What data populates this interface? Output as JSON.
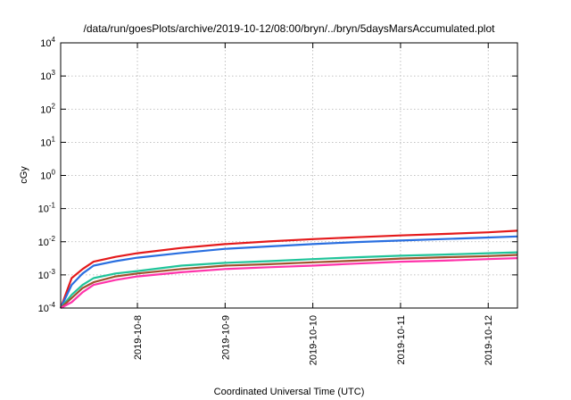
{
  "chart_data": {
    "type": "line",
    "title": "/data/run/goesPlots/archive/2019-10-12/08:00/bryn/../bryn/5daysMarsAccumulated.plot",
    "xlabel": "Coordinated Universal Time (UTC)",
    "ylabel": "cGy",
    "yscale": "log",
    "ylim": [
      0.0001,
      10000
    ],
    "xlim": [
      "2019-10-07T03:00",
      "2019-10-12T08:00"
    ],
    "grid": true,
    "y_ticks": [
      {
        "base": "10",
        "exp": "4"
      },
      {
        "base": "10",
        "exp": "3"
      },
      {
        "base": "10",
        "exp": "2"
      },
      {
        "base": "10",
        "exp": "1"
      },
      {
        "base": "10",
        "exp": "0"
      },
      {
        "base": "10",
        "exp": "-1"
      },
      {
        "base": "10",
        "exp": "-2"
      },
      {
        "base": "10",
        "exp": "-3"
      },
      {
        "base": "10",
        "exp": "-4"
      }
    ],
    "x_ticks": [
      "2019-10-8",
      "2019-10-9",
      "2019-10-10",
      "2019-10-11",
      "2019-10-12"
    ],
    "x": [
      "2019-10-07T03:00",
      "2019-10-07T06:00",
      "2019-10-07T09:00",
      "2019-10-07T12:00",
      "2019-10-07T18:00",
      "2019-10-08T00:00",
      "2019-10-08T12:00",
      "2019-10-09T00:00",
      "2019-10-09T12:00",
      "2019-10-10T00:00",
      "2019-10-10T12:00",
      "2019-10-11T00:00",
      "2019-10-11T12:00",
      "2019-10-12T00:00",
      "2019-10-12T08:00"
    ],
    "series": [
      {
        "color": "#e41a1c",
        "values": [
          0.0001,
          0.0008,
          0.0015,
          0.0025,
          0.0035,
          0.0045,
          0.0065,
          0.0085,
          0.0102,
          0.012,
          0.0137,
          0.0155,
          0.0172,
          0.0192,
          0.0215
        ]
      },
      {
        "color": "#2a6fe0",
        "values": [
          0.0001,
          0.0005,
          0.0011,
          0.0019,
          0.0026,
          0.0033,
          0.0046,
          0.0061,
          0.0072,
          0.0085,
          0.0098,
          0.0109,
          0.0121,
          0.0134,
          0.0145
        ]
      },
      {
        "color": "#20c49a",
        "values": [
          0.0001,
          0.00025,
          0.0005,
          0.0008,
          0.0011,
          0.0013,
          0.0019,
          0.0023,
          0.0026,
          0.003,
          0.0034,
          0.0038,
          0.0041,
          0.0045,
          0.0048
        ]
      },
      {
        "color": "#a0522d",
        "values": [
          0.0001,
          0.0002,
          0.0004,
          0.0006,
          0.0009,
          0.0011,
          0.0015,
          0.0019,
          0.0021,
          0.0024,
          0.0027,
          0.0031,
          0.0034,
          0.0037,
          0.004
        ]
      },
      {
        "color": "#ff33aa",
        "values": [
          0.0001,
          0.00015,
          0.0003,
          0.0005,
          0.0007,
          0.0009,
          0.0012,
          0.0015,
          0.0017,
          0.0019,
          0.0022,
          0.0025,
          0.0027,
          0.003,
          0.0032
        ]
      }
    ]
  }
}
